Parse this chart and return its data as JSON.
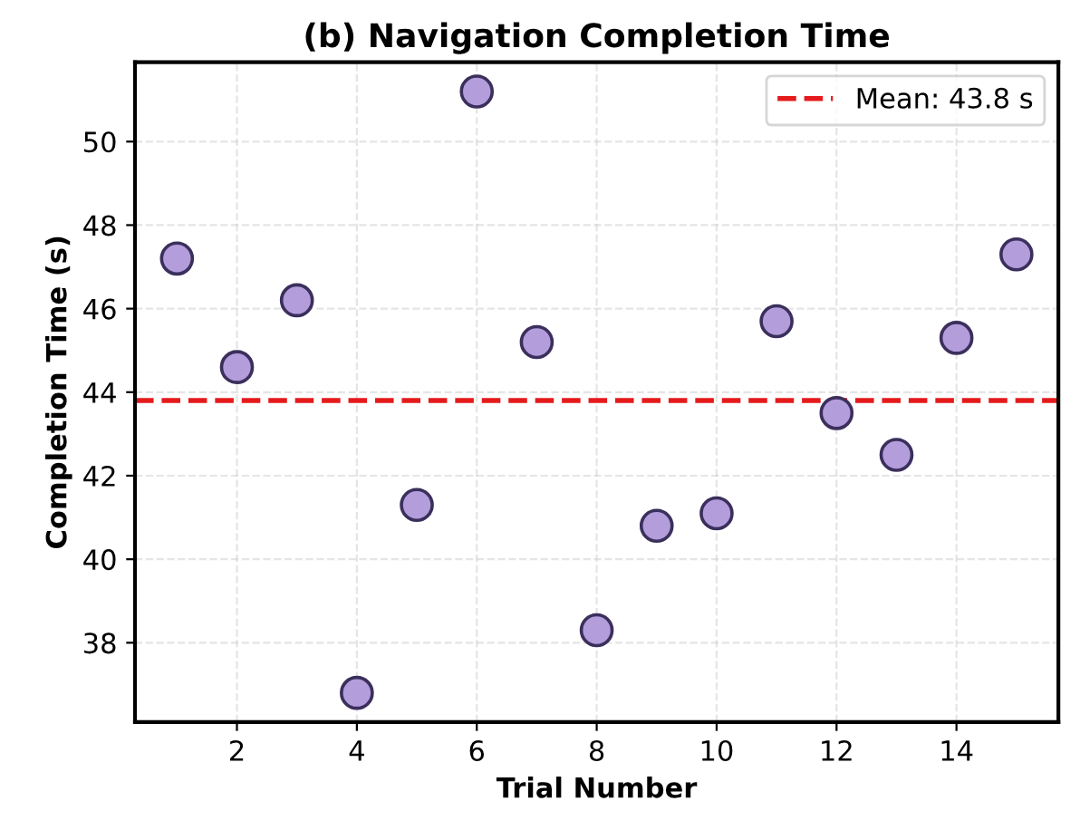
{
  "chart_data": {
    "type": "scatter",
    "title": "(b) Navigation Completion Time",
    "xlabel": "Trial Number",
    "ylabel": "Completion Time (s)",
    "x": [
      1,
      2,
      3,
      4,
      5,
      6,
      7,
      8,
      9,
      10,
      11,
      12,
      13,
      14,
      15
    ],
    "series": [
      {
        "color": "#b39ddb",
        "values": [
          47.2,
          44.6,
          46.2,
          36.8,
          41.3,
          51.2,
          45.2,
          38.3,
          40.8,
          41.1,
          45.7,
          43.5,
          42.5,
          45.3,
          47.3
        ]
      }
    ],
    "xlim": [
      0.3,
      15.7
    ],
    "ylim": [
      36.1,
      51.9
    ],
    "xticks": [
      2,
      4,
      6,
      8,
      10,
      12,
      14
    ],
    "yticks": [
      38,
      40,
      42,
      44,
      46,
      48,
      50
    ],
    "ref_lines": [
      {
        "axis": "y",
        "value": 43.8,
        "label": "Mean: 43.8 s",
        "color": "#e41a1c",
        "line_style": "dashed"
      }
    ],
    "grid": true,
    "legend": "top right",
    "marker": "circle"
  }
}
